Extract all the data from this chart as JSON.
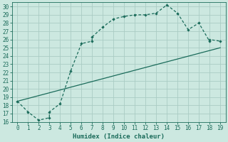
{
  "xlabel": "Humidex (Indice chaleur)",
  "bg_color": "#cce8e0",
  "grid_color": "#aaccC4",
  "line_color": "#1a6b5a",
  "xlim": [
    -0.5,
    19.5
  ],
  "ylim": [
    16,
    30.5
  ],
  "xticks": [
    0,
    1,
    2,
    3,
    4,
    5,
    6,
    7,
    8,
    9,
    10,
    11,
    12,
    13,
    14,
    15,
    16,
    17,
    18,
    19
  ],
  "yticks": [
    16,
    17,
    18,
    19,
    20,
    21,
    22,
    23,
    24,
    25,
    26,
    27,
    28,
    29,
    30
  ],
  "curve1_x": [
    0,
    1,
    2,
    3,
    3,
    4,
    5,
    6,
    7,
    7,
    8,
    9,
    10,
    11,
    12,
    13,
    14,
    15,
    16,
    17,
    18,
    18,
    19
  ],
  "curve1_y": [
    18.5,
    17.2,
    16.2,
    16.5,
    17.2,
    18.2,
    22.2,
    25.5,
    25.8,
    26.3,
    27.5,
    28.5,
    28.8,
    29.0,
    29.0,
    29.2,
    30.2,
    29.2,
    27.2,
    28.0,
    25.8,
    26.0,
    25.8
  ],
  "curve2_x": [
    0,
    19
  ],
  "curve2_y": [
    18.5,
    25.0
  ]
}
